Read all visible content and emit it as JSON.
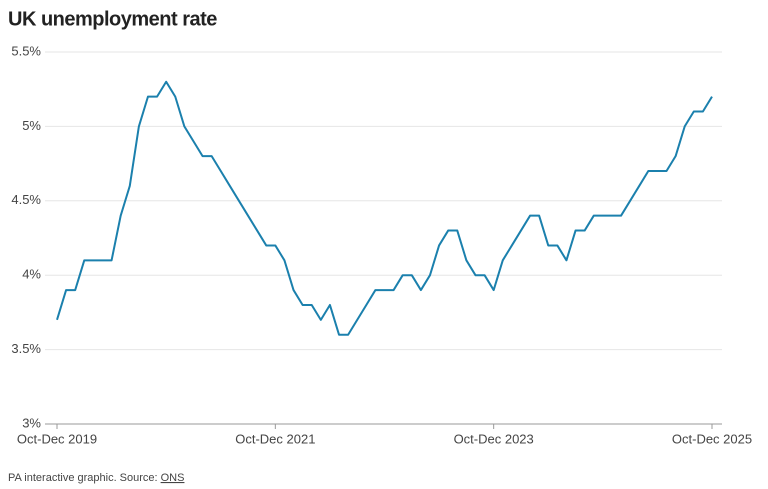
{
  "chart_data": {
    "type": "line",
    "title": "UK unemployment rate",
    "categories": [
      "Oct-Dec 2019",
      null,
      null,
      null,
      null,
      null,
      null,
      null,
      null,
      null,
      null,
      null,
      null,
      null,
      null,
      null,
      null,
      null,
      null,
      null,
      null,
      null,
      null,
      null,
      "Oct-Dec 2021",
      null,
      null,
      null,
      null,
      null,
      null,
      null,
      null,
      null,
      null,
      null,
      null,
      null,
      null,
      null,
      null,
      null,
      null,
      null,
      null,
      null,
      null,
      null,
      "Oct-Dec 2023",
      null,
      null,
      null,
      null,
      null,
      null,
      null,
      null,
      null,
      null,
      null,
      null,
      null,
      null,
      null,
      null,
      null,
      null,
      null,
      null,
      null,
      null,
      null,
      "Oct-Dec 2025"
    ],
    "series": [
      {
        "name": "Unemployment rate",
        "color": "#1b80ad",
        "values": [
          3.7,
          3.9,
          3.9,
          4.1,
          4.1,
          4.1,
          4.1,
          4.4,
          4.6,
          5.0,
          5.2,
          5.2,
          5.3,
          5.2,
          5.0,
          4.9,
          4.8,
          4.8,
          4.7,
          4.6,
          4.5,
          4.4,
          4.3,
          4.2,
          4.2,
          4.1,
          3.9,
          3.8,
          3.8,
          3.7,
          3.8,
          3.6,
          3.6,
          3.7,
          3.8,
          3.9,
          3.9,
          3.9,
          4.0,
          4.0,
          3.9,
          4.0,
          4.2,
          4.3,
          4.3,
          4.1,
          4.0,
          4.0,
          3.9,
          4.1,
          4.2,
          4.3,
          4.4,
          4.4,
          4.2,
          4.2,
          4.1,
          4.3,
          4.3,
          4.4,
          4.4,
          4.4,
          4.4,
          4.5,
          4.6,
          4.7,
          4.7,
          4.7,
          4.8,
          5.0,
          5.1,
          5.1,
          5.2
        ]
      }
    ],
    "ylim": [
      3,
      5.5
    ],
    "yticks": [
      {
        "value": 3,
        "label": "3%"
      },
      {
        "value": 3.5,
        "label": "3.5%"
      },
      {
        "value": 4,
        "label": "4%"
      },
      {
        "value": 4.5,
        "label": "4.5%"
      },
      {
        "value": 5,
        "label": "5%"
      },
      {
        "value": 5.5,
        "label": "5.5%"
      }
    ],
    "grid": true,
    "note": "PA interactive graphic. Source:",
    "source": "ONS"
  }
}
